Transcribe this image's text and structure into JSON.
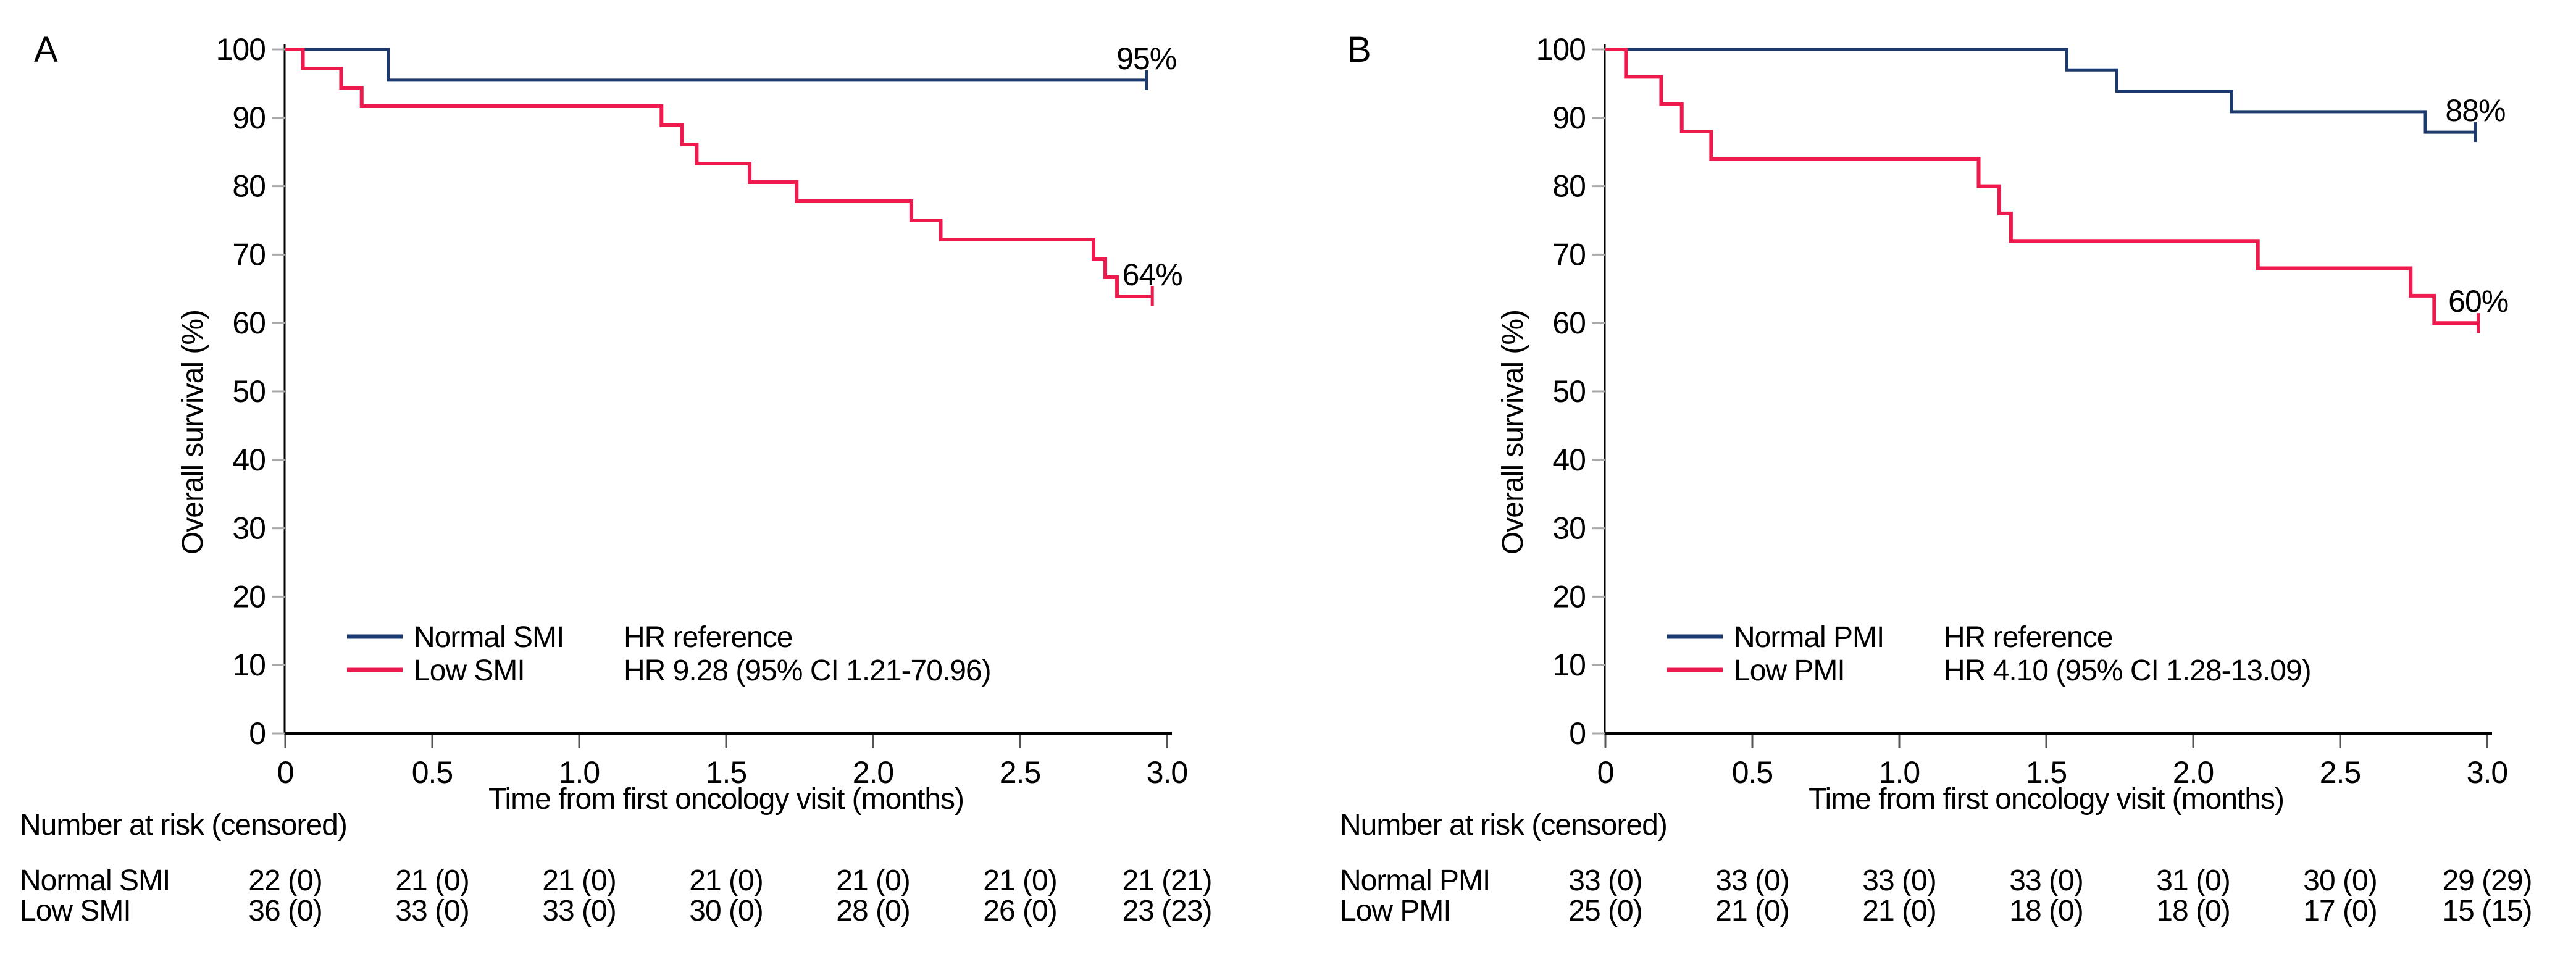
{
  "palette": {
    "normal_line": "#1d3a6e",
    "low_line": "#ee1a4d",
    "axis": "#000000",
    "y_tick": "#a9a9a9",
    "x_tick": "#555555",
    "text": "#000000",
    "background": "#ffffff"
  },
  "chart_data": [
    {
      "type": "line",
      "subtype": "kaplan-meier-step",
      "panel_label": "A",
      "xlabel": "Time from first oncology visit (months)",
      "ylabel": "Overall survival (%)",
      "xlim": [
        0,
        3
      ],
      "ylim": [
        0,
        100
      ],
      "grid": "off",
      "legend_position": "inside-lower-left",
      "xtick_labels": [
        "0",
        "0.5",
        "1.0",
        "1.5",
        "2.0",
        "2.5",
        "3.0"
      ],
      "ytick_values": [
        0,
        10,
        20,
        30,
        40,
        50,
        60,
        70,
        80,
        90,
        100
      ],
      "series": [
        {
          "name": "Normal SMI",
          "color_key": "normal_line",
          "end_label": "95%",
          "end_t": 2.93,
          "censor_tick_at_end": true,
          "steps": [
            [
              0,
              100
            ],
            [
              0.35,
              95.5
            ]
          ]
        },
        {
          "name": "Low SMI",
          "color_key": "low_line",
          "end_label": "64%",
          "end_t": 2.95,
          "censor_tick_at_end": true,
          "steps": [
            [
              0,
              100
            ],
            [
              0.06,
              97.2
            ],
            [
              0.19,
              94.4
            ],
            [
              0.26,
              91.7
            ],
            [
              1.28,
              88.9
            ],
            [
              1.35,
              86.1
            ],
            [
              1.4,
              83.3
            ],
            [
              1.58,
              80.6
            ],
            [
              1.74,
              77.8
            ],
            [
              2.13,
              75.0
            ],
            [
              2.23,
              72.2
            ],
            [
              2.75,
              69.4
            ],
            [
              2.79,
              66.7
            ],
            [
              2.83,
              63.9
            ]
          ]
        }
      ],
      "legend": [
        {
          "swatch": "normal_line",
          "label": "Normal SMI",
          "hr": "HR reference"
        },
        {
          "swatch": "low_line",
          "label": "Low SMI",
          "hr": "HR 9.28 (95% CI 1.21-70.96)"
        }
      ],
      "risk_table": {
        "header": "Number at risk (censored)",
        "rows": [
          {
            "label": "Normal SMI",
            "values": [
              "22 (0)",
              "21 (0)",
              "21 (0)",
              "21 (0)",
              "21 (0)",
              "21 (0)",
              "21 (21)"
            ]
          },
          {
            "label": "Low SMI",
            "values": [
              "36 (0)",
              "33 (0)",
              "33 (0)",
              "30 (0)",
              "28 (0)",
              "26 (0)",
              "23 (23)"
            ]
          }
        ]
      }
    },
    {
      "type": "line",
      "subtype": "kaplan-meier-step",
      "panel_label": "B",
      "xlabel": "Time from first oncology visit (months)",
      "ylabel": "Overall survival (%)",
      "xlim": [
        0,
        3
      ],
      "ylim": [
        0,
        100
      ],
      "grid": "off",
      "legend_position": "inside-lower-left",
      "xtick_labels": [
        "0",
        "0.5",
        "1.0",
        "1.5",
        "2.0",
        "2.5",
        "3.0"
      ],
      "ytick_values": [
        0,
        10,
        20,
        30,
        40,
        50,
        60,
        70,
        80,
        90,
        100
      ],
      "series": [
        {
          "name": "Normal PMI",
          "color_key": "normal_line",
          "end_label": "88%",
          "end_t": 2.96,
          "censor_tick_at_end": true,
          "steps": [
            [
              0,
              100
            ],
            [
              1.57,
              97.0
            ],
            [
              1.74,
              93.9
            ],
            [
              2.13,
              90.9
            ],
            [
              2.79,
              87.9
            ]
          ]
        },
        {
          "name": "Low PMI",
          "color_key": "low_line",
          "end_label": "60%",
          "end_t": 2.97,
          "censor_tick_at_end": true,
          "steps": [
            [
              0,
              100
            ],
            [
              0.07,
              96.0
            ],
            [
              0.19,
              92.0
            ],
            [
              0.26,
              88.0
            ],
            [
              0.36,
              84.0
            ],
            [
              1.27,
              80.0
            ],
            [
              1.34,
              76.0
            ],
            [
              1.38,
              72.0
            ],
            [
              2.22,
              68.0
            ],
            [
              2.74,
              64.0
            ],
            [
              2.82,
              60.0
            ]
          ]
        }
      ],
      "legend": [
        {
          "swatch": "normal_line",
          "label": "Normal PMI",
          "hr": "HR reference"
        },
        {
          "swatch": "low_line",
          "label": "Low PMI",
          "hr": "HR 4.10 (95% CI 1.28-13.09)"
        }
      ],
      "risk_table": {
        "header": "Number at risk (censored)",
        "rows": [
          {
            "label": "Normal PMI",
            "values": [
              "33 (0)",
              "33 (0)",
              "33 (0)",
              "33 (0)",
              "31 (0)",
              "30 (0)",
              "29 (29)"
            ]
          },
          {
            "label": "Low PMI",
            "values": [
              "25 (0)",
              "21 (0)",
              "21 (0)",
              "18 (0)",
              "18 (0)",
              "17 (0)",
              "15 (15)"
            ]
          }
        ]
      }
    }
  ]
}
